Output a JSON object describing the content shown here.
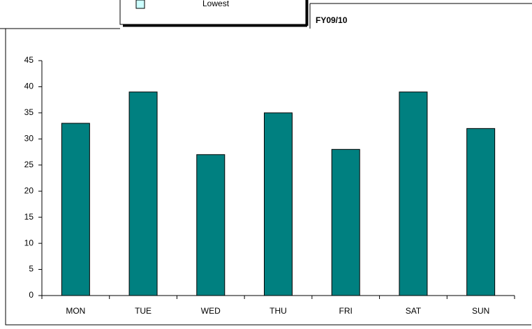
{
  "chart_data": {
    "type": "bar",
    "title": "FY09/10",
    "legend": {
      "label": "Lowest",
      "color": "#ccffff"
    },
    "categories": [
      "MON",
      "TUE",
      "WED",
      "THU",
      "FRI",
      "SAT",
      "SUN"
    ],
    "values": [
      33,
      39,
      27,
      35,
      28,
      39,
      32
    ],
    "color": "#008080",
    "ylim": [
      0,
      45
    ],
    "yticks": [
      0,
      5,
      10,
      15,
      20,
      25,
      30,
      35,
      40,
      45
    ]
  }
}
